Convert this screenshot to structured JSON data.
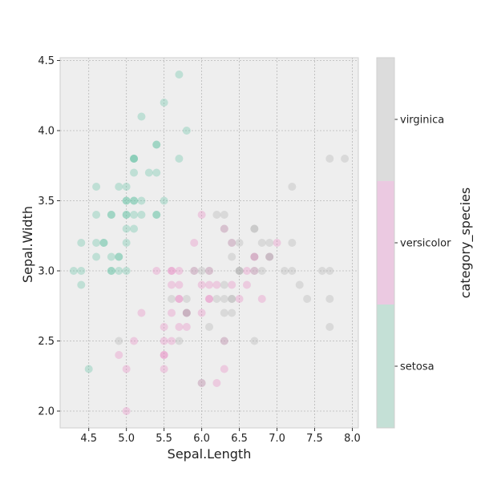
{
  "chart_data": {
    "type": "scatter",
    "xlabel": "Sepal.Length",
    "ylabel": "Sepal.Width",
    "xlim": [
      4.12,
      8.08
    ],
    "ylim": [
      1.88,
      4.52
    ],
    "xticks": [
      "4.5",
      "5.0",
      "5.5",
      "6.0",
      "6.5",
      "7.0",
      "7.5",
      "8.0"
    ],
    "xtick_values": [
      4.5,
      5.0,
      5.5,
      6.0,
      6.5,
      7.0,
      7.5,
      8.0
    ],
    "yticks": [
      "2.0",
      "2.5",
      "3.0",
      "3.5",
      "4.0",
      "4.5"
    ],
    "ytick_values": [
      2.0,
      2.5,
      3.0,
      3.5,
      4.0,
      4.5
    ],
    "grid": true,
    "colorbar": {
      "label": "category_species",
      "categories": [
        "setosa",
        "versicolor",
        "virginica"
      ],
      "colors": [
        "#c4e0d6",
        "#ebc9e1",
        "#dcdcdc"
      ]
    },
    "marker_colors": {
      "setosa": "#66c2a5",
      "versicolor": "#e78ac3",
      "virginica": "#b3b3b3"
    },
    "series": [
      {
        "name": "setosa",
        "x": [
          5.1,
          4.9,
          4.7,
          4.6,
          5.0,
          5.4,
          4.6,
          5.0,
          4.4,
          4.9,
          5.4,
          4.8,
          4.8,
          4.3,
          5.8,
          5.7,
          5.4,
          5.1,
          5.7,
          5.1,
          5.4,
          5.1,
          4.6,
          5.1,
          4.8,
          5.0,
          5.0,
          5.2,
          5.2,
          4.7,
          4.8,
          5.4,
          5.2,
          5.5,
          4.9,
          5.0,
          5.5,
          4.9,
          4.4,
          5.1,
          5.0,
          4.5,
          4.4,
          5.0,
          5.1,
          4.8,
          5.1,
          4.6,
          5.3,
          5.0
        ],
        "y": [
          3.5,
          3.0,
          3.2,
          3.1,
          3.6,
          3.9,
          3.4,
          3.4,
          2.9,
          3.1,
          3.7,
          3.4,
          3.0,
          3.0,
          4.0,
          4.4,
          3.9,
          3.5,
          3.8,
          3.8,
          3.4,
          3.7,
          3.6,
          3.3,
          3.4,
          3.0,
          3.4,
          3.5,
          3.4,
          3.2,
          3.1,
          3.4,
          4.1,
          4.2,
          3.1,
          3.2,
          3.5,
          3.6,
          3.0,
          3.4,
          3.5,
          2.3,
          3.2,
          3.5,
          3.8,
          3.0,
          3.8,
          3.2,
          3.7,
          3.3
        ]
      },
      {
        "name": "versicolor",
        "x": [
          7.0,
          6.4,
          6.9,
          5.5,
          6.5,
          5.7,
          6.3,
          4.9,
          6.6,
          5.2,
          5.0,
          5.9,
          6.0,
          6.1,
          5.6,
          6.7,
          5.6,
          5.8,
          6.2,
          5.6,
          5.9,
          6.1,
          6.3,
          6.1,
          6.4,
          6.6,
          6.8,
          6.7,
          6.0,
          5.7,
          5.5,
          5.5,
          5.8,
          6.0,
          5.4,
          6.0,
          6.7,
          6.3,
          5.6,
          5.5,
          5.5,
          6.1,
          5.8,
          5.0,
          5.6,
          5.7,
          5.7,
          6.2,
          5.1,
          5.7
        ],
        "y": [
          3.2,
          3.2,
          3.1,
          2.3,
          2.8,
          2.8,
          3.3,
          2.4,
          2.9,
          2.7,
          2.0,
          3.0,
          2.2,
          2.9,
          2.9,
          3.1,
          3.0,
          2.7,
          2.2,
          2.5,
          3.2,
          2.8,
          2.5,
          2.8,
          2.9,
          3.0,
          2.8,
          3.0,
          2.9,
          2.6,
          2.4,
          2.4,
          2.7,
          2.7,
          3.0,
          3.4,
          3.1,
          2.3,
          3.0,
          2.5,
          2.6,
          3.0,
          2.6,
          2.3,
          2.7,
          3.0,
          2.9,
          2.9,
          2.5,
          2.8
        ]
      },
      {
        "name": "virginica",
        "x": [
          6.3,
          5.8,
          7.1,
          6.3,
          6.5,
          7.6,
          4.9,
          7.3,
          6.7,
          7.2,
          6.5,
          6.4,
          6.8,
          5.7,
          5.8,
          6.4,
          6.5,
          7.7,
          7.7,
          6.0,
          6.9,
          5.6,
          7.7,
          6.3,
          6.7,
          7.2,
          6.2,
          6.1,
          6.4,
          7.2,
          7.4,
          7.9,
          6.4,
          6.3,
          6.1,
          7.7,
          6.3,
          6.4,
          6.0,
          6.9,
          6.7,
          6.9,
          5.8,
          6.8,
          6.7,
          6.7,
          6.3,
          6.5,
          6.2,
          5.9
        ],
        "y": [
          3.3,
          2.7,
          3.0,
          2.9,
          3.0,
          3.0,
          2.5,
          2.9,
          2.5,
          3.6,
          3.2,
          2.7,
          3.0,
          2.5,
          2.8,
          3.2,
          3.0,
          3.8,
          2.6,
          2.2,
          3.2,
          2.8,
          2.8,
          2.7,
          3.3,
          3.2,
          2.8,
          3.0,
          2.8,
          3.0,
          2.8,
          3.8,
          2.8,
          2.8,
          2.6,
          3.0,
          3.4,
          3.1,
          3.0,
          3.1,
          3.1,
          3.1,
          2.7,
          3.2,
          3.3,
          3.0,
          2.5,
          3.0,
          3.4,
          3.0
        ]
      }
    ]
  }
}
